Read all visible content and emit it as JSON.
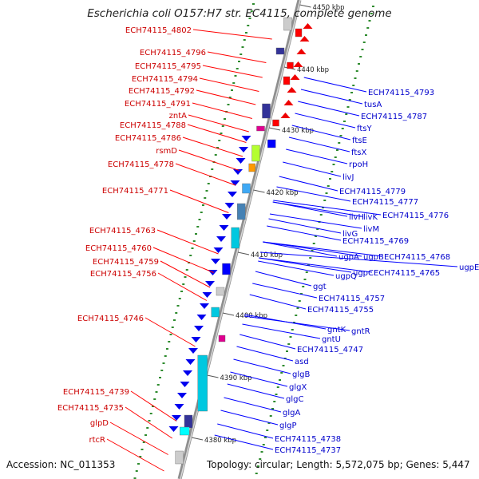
{
  "title": "Escherichia coli O157:H7 str. EC4115, complete genome",
  "footer": {
    "accession": "Accession: NC_011353",
    "topology": "Topology: circular; Length: 5,572,075 bp; Genes: 5,447"
  },
  "colors": {
    "left_labels": "#cc0000",
    "right_labels": "#0000cc",
    "backbone": "#888888"
  },
  "kbp_ticks": [
    "4450 kbp",
    "4440 kbp",
    "4430 kbp",
    "4420 kbp",
    "4410 kbp",
    "4400 kbp",
    "4390 kbp",
    "4380 kbp"
  ],
  "left_labels": [
    "ECH74115_4802",
    "ECH74115_4796",
    "ECH74115_4795",
    "ECH74115_4794",
    "ECH74115_4792",
    "ECH74115_4791",
    "zntA",
    "ECH74115_4788",
    "ECH74115_4786",
    "rsmD",
    "ECH74115_4778",
    "ECH74115_4771",
    "ECH74115_4763",
    "ECH74115_4760",
    "ECH74115_4759",
    "ECH74115_4756",
    "ECH74115_4746",
    "ECH74115_4739",
    "ECH74115_4735",
    "glpD",
    "rtcR"
  ],
  "right_labels": [
    "ECH74115_4793",
    "tusA",
    "ECH74115_4787",
    "ftsY",
    "ftsE",
    "ftsX",
    "rpoH",
    "livJ",
    "ECH74115_4779",
    "ECH74115_4777",
    "livH",
    "livK",
    "ECH74115_4776",
    "livM",
    "livG",
    "ECH74115_4769",
    "ugpA",
    "ugpB",
    "ECH74115_4768",
    "ugpE",
    "ugpQ",
    "ugpC",
    "ECH74115_4765",
    "ggt",
    "ECH74115_4757",
    "ECH74115_4755",
    "gntK",
    "gntR",
    "gntU",
    "ECH74115_4747",
    "asd",
    "glgB",
    "glgX",
    "glgC",
    "glgA",
    "glgP",
    "ECH74115_4738",
    "ECH74115_4737"
  ]
}
